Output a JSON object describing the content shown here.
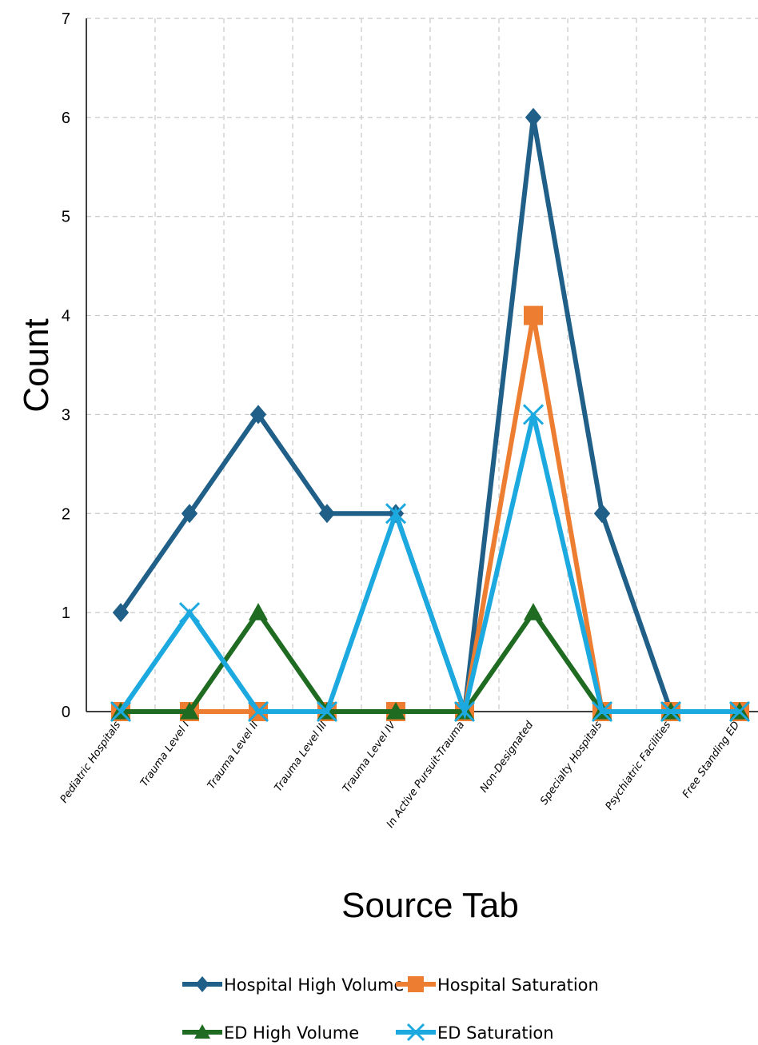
{
  "chart_data": {
    "type": "line",
    "title": "",
    "xlabel": "Source Tab",
    "ylabel": "Count",
    "ylim": [
      0,
      7
    ],
    "yticks": [
      0,
      1,
      2,
      3,
      4,
      5,
      6,
      7
    ],
    "grid": true,
    "legend_position": "bottom",
    "categories": [
      "Pediatric Hospitals",
      "Trauma Level I",
      "Trauma Level II",
      "Trauma Level III",
      "Trauma Level IV",
      "In Active Pursuit-Trauma",
      "Non-Designated",
      "Specialty Hospitals",
      "Psychiatric Facilities",
      "Free Standing ED"
    ],
    "series": [
      {
        "name": "Hospital High Volume",
        "color": "#1f5f88",
        "marker": "diamond",
        "values": [
          1,
          2,
          3,
          2,
          2,
          0,
          6,
          2,
          0,
          0
        ]
      },
      {
        "name": "Hospital Saturation",
        "color": "#ed7d31",
        "marker": "square",
        "values": [
          0,
          0,
          0,
          0,
          0,
          0,
          4,
          0,
          0,
          0
        ]
      },
      {
        "name": "ED High Volume",
        "color": "#1e6b21",
        "marker": "triangle",
        "values": [
          0,
          0,
          1,
          0,
          0,
          0,
          1,
          0,
          0,
          0
        ]
      },
      {
        "name": "ED Saturation",
        "color": "#1ca9e0",
        "marker": "x",
        "values": [
          0,
          1,
          0,
          0,
          2,
          0,
          3,
          0,
          0,
          0
        ]
      }
    ]
  }
}
